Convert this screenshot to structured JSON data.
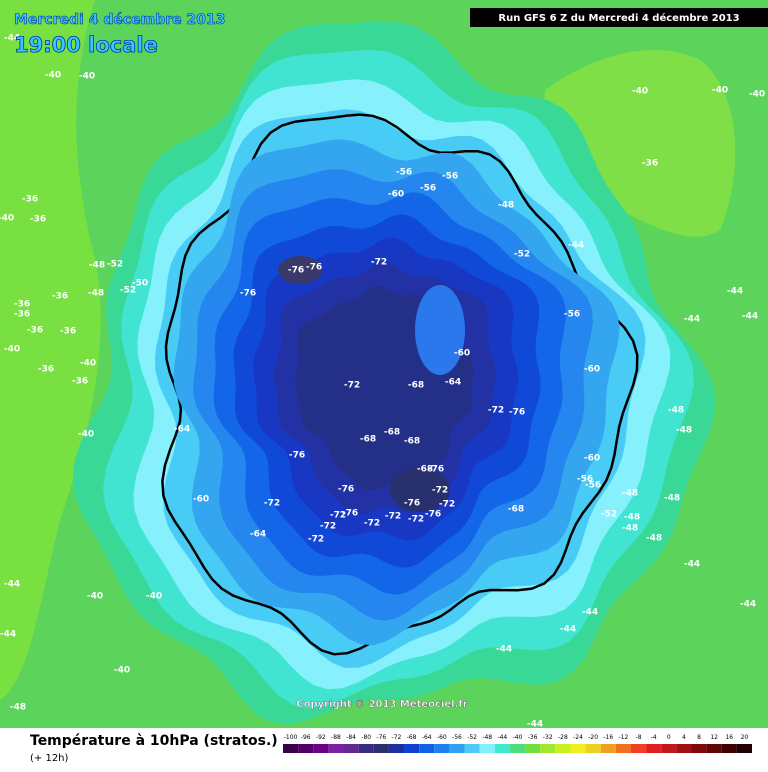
{
  "header": {
    "date": "Mercredi 4 décembre 2013",
    "time": "19:00 locale",
    "run": "Run GFS 6 Z du Mercredi 4 décembre 2013"
  },
  "copyright": "Copyright © 2013 Meteociel.fr",
  "legend": {
    "title": "Température à 10hPa (stratos.)",
    "subtitle": "(+ 12h)",
    "scale": [
      -100,
      -96,
      -92,
      -88,
      -84,
      -80,
      -76,
      -72,
      -68,
      -64,
      -60,
      -56,
      -52,
      -48,
      -44,
      -40,
      -36,
      -32,
      -28,
      -24,
      -20,
      -16,
      -12,
      -8,
      -4,
      0,
      4,
      8,
      12,
      16,
      20
    ],
    "colors": [
      "#3a0048",
      "#500068",
      "#6a0088",
      "#7a20a0",
      "#602890",
      "#3a2a80",
      "#283070",
      "#1a30a0",
      "#1040d0",
      "#1060e8",
      "#2080f0",
      "#30a0f0",
      "#50c8f8",
      "#80f0ff",
      "#40e8d0",
      "#50dc80",
      "#70e040",
      "#a0e830",
      "#c8f020",
      "#f0f020",
      "#f0d020",
      "#f0a020",
      "#f07020",
      "#f04020",
      "#e02020",
      "#c01818",
      "#a01010",
      "#800808",
      "#600404",
      "#400000",
      "#200000"
    ]
  },
  "contour_labels": [
    -44,
    -40,
    -40,
    -36,
    -36,
    -40,
    -48,
    -52,
    -48,
    -52,
    -50,
    -36,
    -36,
    -36,
    -36,
    -36,
    -40,
    -40,
    -36,
    -36,
    -40,
    -64,
    -60,
    -64,
    -72,
    -72,
    -72,
    -76,
    -72,
    -72,
    -72,
    -72,
    -76,
    -72,
    -76,
    -76,
    -68,
    -72,
    -76,
    -76,
    -68,
    -68,
    -68,
    -72,
    -68,
    -64,
    -60,
    -72,
    -76,
    -68,
    -60,
    -60,
    -56,
    -52,
    -48,
    -44,
    -56,
    -60,
    -56,
    -56,
    -72,
    -76,
    -76,
    -76,
    -40,
    -40,
    -40,
    -36,
    -44,
    -44,
    -44,
    -48,
    -48,
    -48,
    -48,
    -48,
    -52,
    -48,
    -48,
    -56,
    -56,
    -44,
    -44,
    -44,
    -44,
    -44,
    -40,
    -40,
    -44,
    -44,
    -40,
    -44,
    -48
  ]
}
